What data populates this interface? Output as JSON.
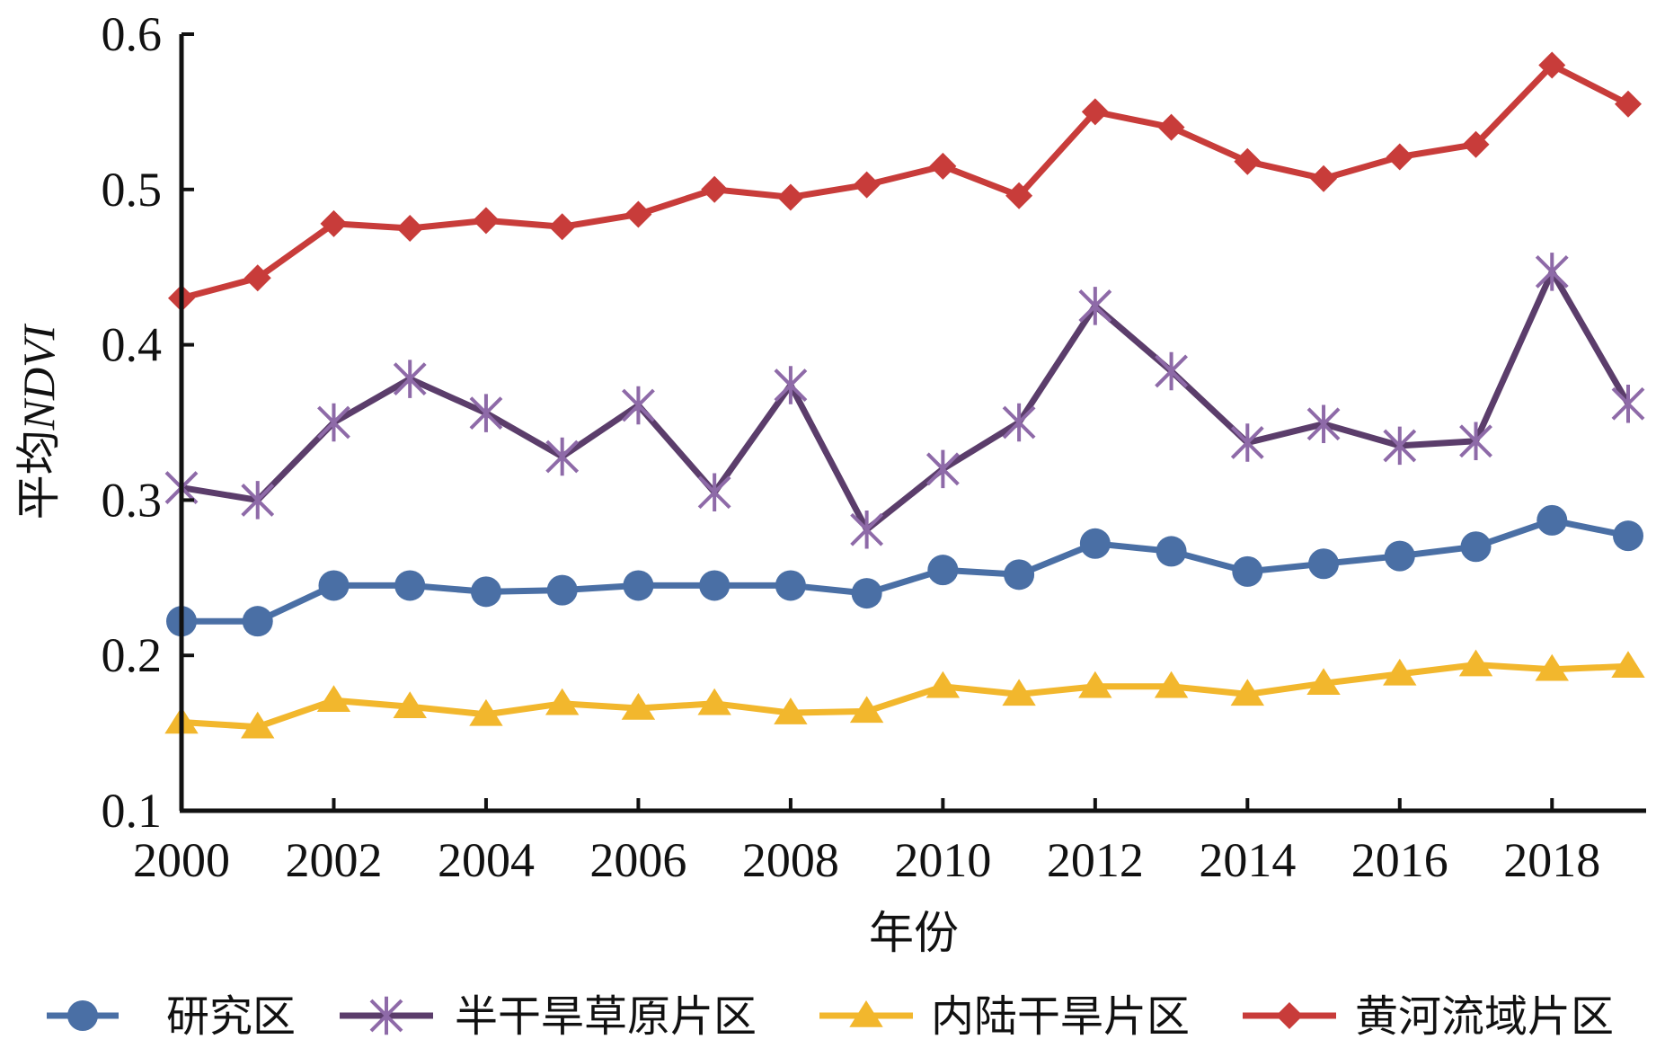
{
  "chart_data": {
    "type": "line",
    "title": "",
    "xlabel": "年份",
    "ylabel_prefix": "平均",
    "ylabel_italic": "NDVI",
    "xlim": [
      2000,
      2019
    ],
    "ylim": [
      0.1,
      0.6
    ],
    "x_ticks": [
      2000,
      2002,
      2004,
      2006,
      2008,
      2010,
      2012,
      2014,
      2016,
      2018
    ],
    "x_tick_labels": [
      "2000",
      "2002",
      "2004",
      "2006",
      "2008",
      "2010",
      "2012",
      "2014",
      "2016",
      "2018"
    ],
    "y_ticks": [
      0.1,
      0.2,
      0.3,
      0.4,
      0.5,
      0.6
    ],
    "y_tick_labels": [
      "0.1",
      "0.2",
      "0.3",
      "0.4",
      "0.5",
      "0.6"
    ],
    "grid": false,
    "legend_position": "bottom",
    "x": [
      2000,
      2001,
      2002,
      2003,
      2004,
      2005,
      2006,
      2007,
      2008,
      2009,
      2010,
      2011,
      2012,
      2013,
      2014,
      2015,
      2016,
      2017,
      2018,
      2019
    ],
    "series": [
      {
        "name": "研究区",
        "color": "#4a6fa5",
        "marker": "circle",
        "values": [
          0.222,
          0.222,
          0.245,
          0.245,
          0.241,
          0.242,
          0.245,
          0.245,
          0.245,
          0.24,
          0.255,
          0.252,
          0.272,
          0.267,
          0.254,
          0.259,
          0.264,
          0.27,
          0.287,
          0.277
        ]
      },
      {
        "name": "半干旱草原片区",
        "color": "#5b3d6b",
        "marker_color": "#8e6aa8",
        "marker": "star",
        "values": [
          0.308,
          0.3,
          0.35,
          0.378,
          0.356,
          0.328,
          0.361,
          0.305,
          0.374,
          0.281,
          0.32,
          0.35,
          0.425,
          0.383,
          0.337,
          0.349,
          0.335,
          0.338,
          0.447,
          0.362
        ]
      },
      {
        "name": "内陆干旱片区",
        "color": "#f2b72d",
        "marker": "triangle",
        "values": [
          0.157,
          0.154,
          0.171,
          0.167,
          0.162,
          0.169,
          0.166,
          0.169,
          0.163,
          0.164,
          0.18,
          0.175,
          0.18,
          0.18,
          0.175,
          0.182,
          0.188,
          0.194,
          0.191,
          0.193
        ]
      },
      {
        "name": "黄河流域片区",
        "color": "#c83c3a",
        "marker": "diamond",
        "values": [
          0.43,
          0.443,
          0.478,
          0.475,
          0.48,
          0.476,
          0.484,
          0.5,
          0.495,
          0.503,
          0.515,
          0.496,
          0.55,
          0.54,
          0.518,
          0.507,
          0.521,
          0.529,
          0.58,
          0.555
        ]
      }
    ]
  }
}
